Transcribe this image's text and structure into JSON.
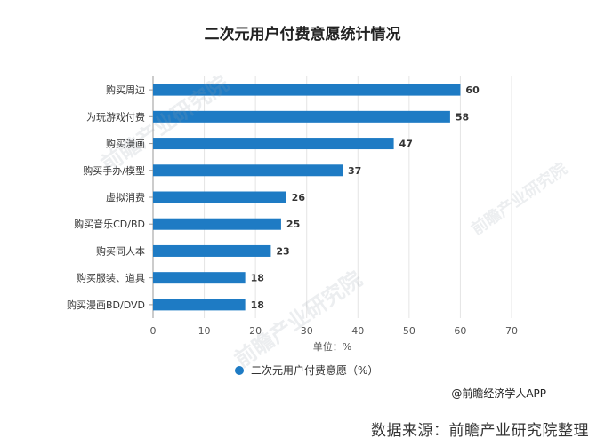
{
  "chart_data": {
    "type": "bar",
    "orientation": "horizontal",
    "title": "二次元用户付费意愿统计情况",
    "categories": [
      "购买周边",
      "为玩游戏付费",
      "购买漫画",
      "购买手办/模型",
      "虚拟消费",
      "购买音乐CD/BD",
      "购买同人本",
      "购买服装、道具",
      "购买漫画BD/DVD"
    ],
    "series": [
      {
        "name": "二次元用户付费意愿（%）",
        "values": [
          60,
          58,
          47,
          37,
          26,
          25,
          23,
          18,
          18
        ],
        "color": "#1e7bc4"
      }
    ],
    "xlabel": "单位：%",
    "xlim": [
      0,
      70
    ],
    "xticks": [
      0,
      10,
      20,
      30,
      40,
      50,
      60,
      70
    ],
    "grid": true,
    "legend_position": "bottom"
  },
  "attribution": "@前瞻经济学人APP",
  "source": "数据来源：前瞻产业研究院整理",
  "watermark_text": "前瞻产业研究院"
}
